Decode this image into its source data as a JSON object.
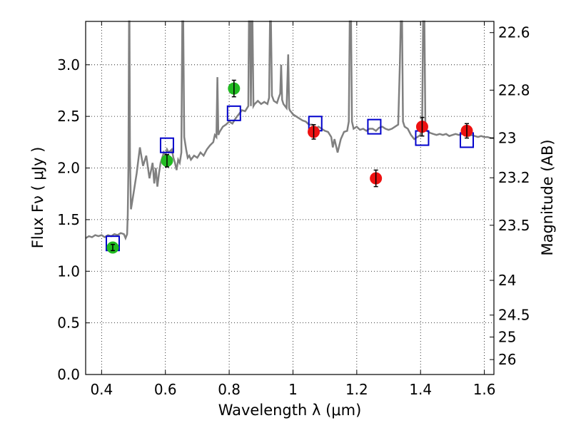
{
  "chart_data": {
    "type": "scatter",
    "xlabel": "Wavelength  λ (μm)",
    "ylabel": "Flux  Fν  ( μJy )",
    "y2label": "Magnitude (AB)",
    "xlim": [
      0.35,
      1.63
    ],
    "ylim": [
      0.0,
      3.42
    ],
    "grid": true,
    "xticks": [
      {
        "v": 0.4,
        "label": "0.4"
      },
      {
        "v": 0.6,
        "label": "0.6"
      },
      {
        "v": 0.8,
        "label": "0.8"
      },
      {
        "v": 1.0,
        "label": "1"
      },
      {
        "v": 1.2,
        "label": "1.2"
      },
      {
        "v": 1.4,
        "label": "1.4"
      },
      {
        "v": 1.6,
        "label": "1.6"
      }
    ],
    "yticks": [
      {
        "v": 0.0,
        "label": "0.0"
      },
      {
        "v": 0.5,
        "label": "0.5"
      },
      {
        "v": 1.0,
        "label": "1.0"
      },
      {
        "v": 1.5,
        "label": "1.5"
      },
      {
        "v": 2.0,
        "label": "2.0"
      },
      {
        "v": 2.5,
        "label": "2.5"
      },
      {
        "v": 3.0,
        "label": "3.0"
      }
    ],
    "mag_ticks": [
      {
        "mag": 22.6,
        "label": "22.6"
      },
      {
        "mag": 22.8,
        "label": "22.8"
      },
      {
        "mag": 23.0,
        "label": "23"
      },
      {
        "mag": 23.2,
        "label": "23.2"
      },
      {
        "mag": 23.5,
        "label": "23.5"
      },
      {
        "mag": 24.0,
        "label": "24"
      },
      {
        "mag": 24.5,
        "label": "24.5"
      },
      {
        "mag": 25.0,
        "label": "25"
      },
      {
        "mag": 26.0,
        "label": "26"
      }
    ],
    "colors": {
      "spectrum": "#808080",
      "model": "#0000cc",
      "green": "#22bb22",
      "red": "#ee1111",
      "errorbar": "#000000"
    },
    "spectrum": [
      [
        0.35,
        1.32
      ],
      [
        0.36,
        1.34
      ],
      [
        0.37,
        1.33
      ],
      [
        0.38,
        1.35
      ],
      [
        0.39,
        1.34
      ],
      [
        0.4,
        1.35
      ],
      [
        0.41,
        1.33
      ],
      [
        0.42,
        1.35
      ],
      [
        0.43,
        1.34
      ],
      [
        0.44,
        1.36
      ],
      [
        0.45,
        1.35
      ],
      [
        0.46,
        1.37
      ],
      [
        0.47,
        1.36
      ],
      [
        0.475,
        1.32
      ],
      [
        0.48,
        1.36
      ],
      [
        0.482,
        1.55
      ],
      [
        0.484,
        2.0
      ],
      [
        0.486,
        3.42
      ],
      [
        0.4875,
        3.42
      ],
      [
        0.489,
        2.1
      ],
      [
        0.492,
        1.6
      ],
      [
        0.5,
        1.75
      ],
      [
        0.51,
        1.95
      ],
      [
        0.52,
        2.2
      ],
      [
        0.53,
        2.02
      ],
      [
        0.54,
        2.12
      ],
      [
        0.55,
        1.9
      ],
      [
        0.56,
        2.05
      ],
      [
        0.565,
        1.85
      ],
      [
        0.57,
        2.0
      ],
      [
        0.575,
        1.82
      ],
      [
        0.58,
        1.95
      ],
      [
        0.585,
        2.05
      ],
      [
        0.59,
        2.1
      ],
      [
        0.595,
        2.15
      ],
      [
        0.6,
        2.12
      ],
      [
        0.605,
        2.18
      ],
      [
        0.61,
        2.15
      ],
      [
        0.62,
        2.18
      ],
      [
        0.625,
        2.1
      ],
      [
        0.63,
        2.05
      ],
      [
        0.635,
        1.98
      ],
      [
        0.64,
        2.08
      ],
      [
        0.645,
        2.05
      ],
      [
        0.65,
        2.15
      ],
      [
        0.653,
        3.42
      ],
      [
        0.656,
        3.42
      ],
      [
        0.659,
        2.3
      ],
      [
        0.665,
        2.18
      ],
      [
        0.67,
        2.1
      ],
      [
        0.675,
        2.12
      ],
      [
        0.68,
        2.08
      ],
      [
        0.69,
        2.12
      ],
      [
        0.7,
        2.1
      ],
      [
        0.71,
        2.15
      ],
      [
        0.72,
        2.12
      ],
      [
        0.73,
        2.18
      ],
      [
        0.74,
        2.22
      ],
      [
        0.75,
        2.25
      ],
      [
        0.755,
        2.32
      ],
      [
        0.76,
        2.3
      ],
      [
        0.763,
        2.88
      ],
      [
        0.766,
        2.32
      ],
      [
        0.77,
        2.35
      ],
      [
        0.78,
        2.4
      ],
      [
        0.79,
        2.42
      ],
      [
        0.8,
        2.45
      ],
      [
        0.81,
        2.43
      ],
      [
        0.82,
        2.48
      ],
      [
        0.83,
        2.52
      ],
      [
        0.84,
        2.56
      ],
      [
        0.85,
        2.55
      ],
      [
        0.86,
        2.6
      ],
      [
        0.862,
        3.42
      ],
      [
        0.866,
        3.42
      ],
      [
        0.868,
        2.6
      ],
      [
        0.87,
        3.42
      ],
      [
        0.873,
        3.42
      ],
      [
        0.876,
        2.6
      ],
      [
        0.88,
        2.62
      ],
      [
        0.89,
        2.65
      ],
      [
        0.9,
        2.62
      ],
      [
        0.91,
        2.64
      ],
      [
        0.92,
        2.62
      ],
      [
        0.925,
        2.68
      ],
      [
        0.928,
        3.42
      ],
      [
        0.931,
        3.42
      ],
      [
        0.934,
        2.7
      ],
      [
        0.94,
        2.65
      ],
      [
        0.95,
        2.63
      ],
      [
        0.955,
        2.68
      ],
      [
        0.96,
        2.72
      ],
      [
        0.963,
        3.0
      ],
      [
        0.966,
        2.66
      ],
      [
        0.97,
        2.62
      ],
      [
        0.98,
        2.58
      ],
      [
        0.985,
        3.1
      ],
      [
        0.988,
        2.58
      ],
      [
        0.99,
        2.56
      ],
      [
        1.0,
        2.52
      ],
      [
        1.01,
        2.5
      ],
      [
        1.02,
        2.48
      ],
      [
        1.03,
        2.46
      ],
      [
        1.04,
        2.45
      ],
      [
        1.05,
        2.42
      ],
      [
        1.06,
        2.42
      ],
      [
        1.07,
        2.38
      ],
      [
        1.08,
        2.4
      ],
      [
        1.09,
        2.38
      ],
      [
        1.1,
        2.36
      ],
      [
        1.11,
        2.35
      ],
      [
        1.12,
        2.3
      ],
      [
        1.125,
        2.2
      ],
      [
        1.13,
        2.28
      ],
      [
        1.14,
        2.15
      ],
      [
        1.15,
        2.28
      ],
      [
        1.16,
        2.35
      ],
      [
        1.17,
        2.36
      ],
      [
        1.175,
        2.45
      ],
      [
        1.178,
        3.42
      ],
      [
        1.182,
        3.42
      ],
      [
        1.185,
        2.45
      ],
      [
        1.19,
        2.38
      ],
      [
        1.2,
        2.4
      ],
      [
        1.21,
        2.37
      ],
      [
        1.22,
        2.38
      ],
      [
        1.23,
        2.36
      ],
      [
        1.24,
        2.38
      ],
      [
        1.25,
        2.38
      ],
      [
        1.26,
        2.36
      ],
      [
        1.27,
        2.39
      ],
      [
        1.28,
        2.4
      ],
      [
        1.29,
        2.38
      ],
      [
        1.3,
        2.37
      ],
      [
        1.31,
        2.38
      ],
      [
        1.32,
        2.4
      ],
      [
        1.33,
        2.42
      ],
      [
        1.335,
        3.0
      ],
      [
        1.338,
        3.42
      ],
      [
        1.342,
        3.42
      ],
      [
        1.345,
        2.45
      ],
      [
        1.35,
        2.4
      ],
      [
        1.36,
        2.38
      ],
      [
        1.37,
        2.32
      ],
      [
        1.38,
        2.28
      ],
      [
        1.39,
        2.3
      ],
      [
        1.4,
        2.32
      ],
      [
        1.405,
        2.45
      ],
      [
        1.408,
        3.42
      ],
      [
        1.412,
        3.42
      ],
      [
        1.415,
        2.45
      ],
      [
        1.42,
        2.36
      ],
      [
        1.43,
        2.34
      ],
      [
        1.44,
        2.33
      ],
      [
        1.45,
        2.32
      ],
      [
        1.46,
        2.33
      ],
      [
        1.47,
        2.32
      ],
      [
        1.48,
        2.33
      ],
      [
        1.49,
        2.31
      ],
      [
        1.5,
        2.32
      ],
      [
        1.51,
        2.33
      ],
      [
        1.52,
        2.32
      ],
      [
        1.53,
        2.33
      ],
      [
        1.54,
        2.32
      ],
      [
        1.55,
        2.31
      ],
      [
        1.56,
        2.32
      ],
      [
        1.57,
        2.31
      ],
      [
        1.58,
        2.3
      ],
      [
        1.59,
        2.31
      ],
      [
        1.6,
        2.3
      ],
      [
        1.61,
        2.3
      ],
      [
        1.62,
        2.29
      ],
      [
        1.63,
        2.29
      ]
    ],
    "model_points": [
      {
        "x": 0.435,
        "y": 1.27
      },
      {
        "x": 0.605,
        "y": 2.22
      },
      {
        "x": 0.815,
        "y": 2.53
      },
      {
        "x": 1.07,
        "y": 2.43
      },
      {
        "x": 1.255,
        "y": 2.4
      },
      {
        "x": 1.405,
        "y": 2.29
      },
      {
        "x": 1.545,
        "y": 2.27
      }
    ],
    "green_points": [
      {
        "x": 0.435,
        "y": 1.23,
        "err": 0.03
      },
      {
        "x": 0.605,
        "y": 2.07,
        "err": 0.06
      },
      {
        "x": 0.815,
        "y": 2.77,
        "err": 0.08
      }
    ],
    "red_points": [
      {
        "x": 1.065,
        "y": 2.35,
        "err": 0.07
      },
      {
        "x": 1.26,
        "y": 1.9,
        "err": 0.08
      },
      {
        "x": 1.405,
        "y": 2.4,
        "err": 0.09
      },
      {
        "x": 1.545,
        "y": 2.36,
        "err": 0.07
      }
    ]
  }
}
